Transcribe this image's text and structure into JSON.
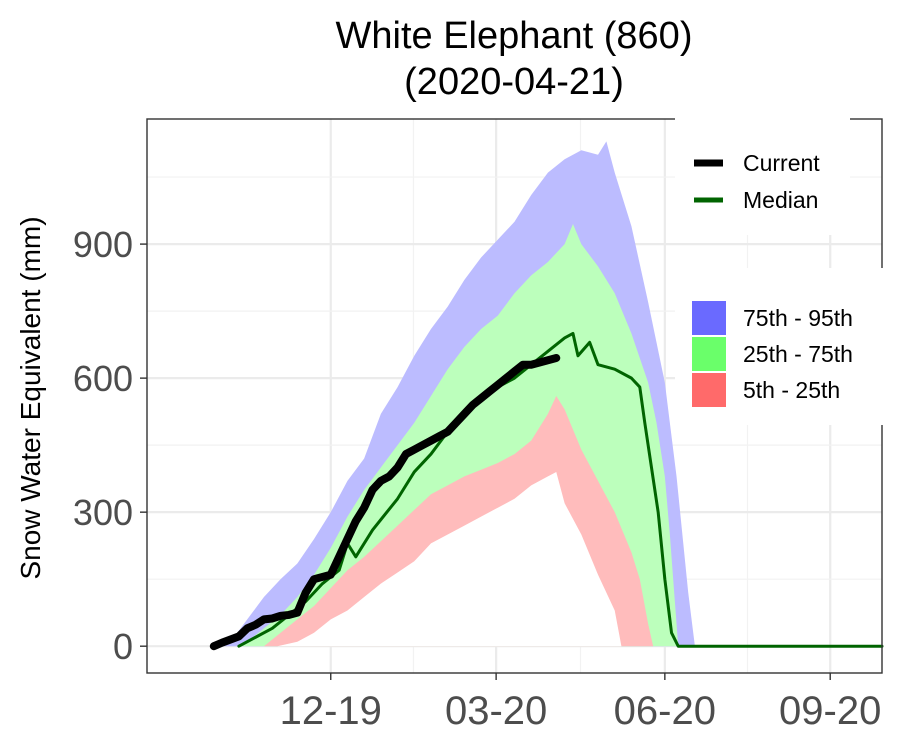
{
  "chart_data": {
    "type": "area",
    "title": "White Elephant (860)",
    "subtitle": "(2020-04-21)",
    "ylabel": "Snow Water Equivalent (mm)",
    "xlabel": "",
    "ylim": [
      -60,
      1180
    ],
    "xlim": [
      -40,
      400
    ],
    "x_ticks": [
      {
        "x": 70,
        "label": "12-19"
      },
      {
        "x": 169,
        "label": "03-20"
      },
      {
        "x": 270,
        "label": "06-20"
      },
      {
        "x": 369,
        "label": "09-20"
      }
    ],
    "y_ticks": [
      {
        "y": 0,
        "label": "0"
      },
      {
        "y": 300,
        "label": "300"
      },
      {
        "y": 600,
        "label": "600"
      },
      {
        "y": 900,
        "label": "900"
      }
    ],
    "x_units": "days since 2019-10-01",
    "legend_lines": [
      {
        "name": "Current",
        "color": "#000000"
      },
      {
        "name": "Median",
        "color": "#006400"
      }
    ],
    "legend_fills": [
      {
        "name": "75th - 95th",
        "color": "#6a6aff"
      },
      {
        "name": "25th - 75th",
        "color": "#6aff6a"
      },
      {
        "name": "5th - 25th",
        "color": "#ff6a6a"
      }
    ],
    "band_colors": {
      "p95": "#bcbcff",
      "p75": "#bcffbc",
      "p25": "#ffbcbc"
    },
    "p95_band": [
      [
        0,
        0
      ],
      [
        10,
        10
      ],
      [
        20,
        60
      ],
      [
        30,
        110
      ],
      [
        40,
        150
      ],
      [
        50,
        185
      ],
      [
        60,
        240
      ],
      [
        70,
        300
      ],
      [
        80,
        370
      ],
      [
        90,
        420
      ],
      [
        100,
        520
      ],
      [
        110,
        580
      ],
      [
        120,
        650
      ],
      [
        130,
        710
      ],
      [
        140,
        760
      ],
      [
        150,
        820
      ],
      [
        160,
        870
      ],
      [
        170,
        910
      ],
      [
        180,
        950
      ],
      [
        190,
        1010
      ],
      [
        200,
        1060
      ],
      [
        210,
        1090
      ],
      [
        220,
        1110
      ],
      [
        230,
        1100
      ],
      [
        235,
        1130
      ],
      [
        240,
        1060
      ],
      [
        250,
        940
      ],
      [
        260,
        770
      ],
      [
        270,
        590
      ],
      [
        277,
        380
      ],
      [
        284,
        120
      ],
      [
        288,
        0
      ],
      [
        400,
        0
      ]
    ],
    "p75_band": [
      [
        15,
        0
      ],
      [
        20,
        10
      ],
      [
        30,
        40
      ],
      [
        40,
        70
      ],
      [
        50,
        110
      ],
      [
        60,
        160
      ],
      [
        70,
        220
      ],
      [
        80,
        290
      ],
      [
        90,
        350
      ],
      [
        100,
        400
      ],
      [
        110,
        450
      ],
      [
        120,
        500
      ],
      [
        130,
        560
      ],
      [
        140,
        620
      ],
      [
        150,
        670
      ],
      [
        160,
        710
      ],
      [
        170,
        740
      ],
      [
        180,
        790
      ],
      [
        190,
        830
      ],
      [
        200,
        860
      ],
      [
        210,
        900
      ],
      [
        215,
        945
      ],
      [
        220,
        900
      ],
      [
        230,
        850
      ],
      [
        240,
        790
      ],
      [
        250,
        700
      ],
      [
        260,
        590
      ],
      [
        265,
        500
      ],
      [
        270,
        380
      ],
      [
        273,
        250
      ],
      [
        276,
        100
      ],
      [
        278,
        0
      ]
    ],
    "p25_band": [
      [
        30,
        0
      ],
      [
        40,
        30
      ],
      [
        50,
        60
      ],
      [
        60,
        90
      ],
      [
        70,
        130
      ],
      [
        80,
        170
      ],
      [
        90,
        200
      ],
      [
        100,
        235
      ],
      [
        110,
        270
      ],
      [
        120,
        305
      ],
      [
        130,
        340
      ],
      [
        140,
        360
      ],
      [
        150,
        380
      ],
      [
        160,
        395
      ],
      [
        170,
        410
      ],
      [
        180,
        430
      ],
      [
        190,
        460
      ],
      [
        200,
        520
      ],
      [
        205,
        560
      ],
      [
        210,
        530
      ],
      [
        220,
        440
      ],
      [
        230,
        370
      ],
      [
        240,
        300
      ],
      [
        250,
        210
      ],
      [
        255,
        150
      ],
      [
        260,
        50
      ],
      [
        263,
        0
      ]
    ],
    "p05_band": [
      [
        38,
        0
      ],
      [
        50,
        10
      ],
      [
        60,
        30
      ],
      [
        70,
        60
      ],
      [
        80,
        80
      ],
      [
        90,
        110
      ],
      [
        100,
        140
      ],
      [
        110,
        165
      ],
      [
        120,
        190
      ],
      [
        130,
        230
      ],
      [
        140,
        250
      ],
      [
        150,
        270
      ],
      [
        160,
        290
      ],
      [
        170,
        310
      ],
      [
        180,
        330
      ],
      [
        190,
        360
      ],
      [
        200,
        380
      ],
      [
        205,
        390
      ],
      [
        210,
        320
      ],
      [
        220,
        250
      ],
      [
        230,
        160
      ],
      [
        240,
        80
      ],
      [
        244,
        0
      ]
    ],
    "series": [
      {
        "name": "Median",
        "color": "#006400",
        "width": 3,
        "points": [
          [
            15,
            0
          ],
          [
            25,
            20
          ],
          [
            35,
            40
          ],
          [
            45,
            70
          ],
          [
            55,
            100
          ],
          [
            65,
            140
          ],
          [
            75,
            170
          ],
          [
            80,
            230
          ],
          [
            85,
            200
          ],
          [
            95,
            260
          ],
          [
            110,
            330
          ],
          [
            120,
            390
          ],
          [
            130,
            430
          ],
          [
            140,
            480
          ],
          [
            150,
            520
          ],
          [
            160,
            550
          ],
          [
            170,
            580
          ],
          [
            180,
            600
          ],
          [
            190,
            630
          ],
          [
            200,
            660
          ],
          [
            210,
            690
          ],
          [
            215,
            700
          ],
          [
            218,
            650
          ],
          [
            225,
            680
          ],
          [
            230,
            630
          ],
          [
            240,
            620
          ],
          [
            250,
            600
          ],
          [
            255,
            580
          ],
          [
            258,
            500
          ],
          [
            262,
            400
          ],
          [
            266,
            300
          ],
          [
            270,
            150
          ],
          [
            274,
            30
          ],
          [
            278,
            0
          ],
          [
            400,
            0
          ]
        ]
      },
      {
        "name": "Current",
        "color": "#000000",
        "width": 8,
        "points": [
          [
            0,
            0
          ],
          [
            5,
            8
          ],
          [
            10,
            15
          ],
          [
            15,
            22
          ],
          [
            20,
            40
          ],
          [
            25,
            48
          ],
          [
            30,
            60
          ],
          [
            35,
            62
          ],
          [
            40,
            68
          ],
          [
            45,
            70
          ],
          [
            50,
            75
          ],
          [
            55,
            120
          ],
          [
            60,
            150
          ],
          [
            65,
            155
          ],
          [
            70,
            160
          ],
          [
            75,
            200
          ],
          [
            80,
            240
          ],
          [
            85,
            280
          ],
          [
            90,
            310
          ],
          [
            95,
            350
          ],
          [
            100,
            370
          ],
          [
            105,
            380
          ],
          [
            110,
            400
          ],
          [
            115,
            430
          ],
          [
            120,
            440
          ],
          [
            125,
            450
          ],
          [
            130,
            460
          ],
          [
            135,
            470
          ],
          [
            140,
            480
          ],
          [
            145,
            500
          ],
          [
            150,
            520
          ],
          [
            155,
            540
          ],
          [
            160,
            555
          ],
          [
            165,
            570
          ],
          [
            170,
            585
          ],
          [
            175,
            600
          ],
          [
            180,
            615
          ],
          [
            185,
            630
          ],
          [
            190,
            630
          ],
          [
            195,
            635
          ],
          [
            200,
            640
          ],
          [
            205,
            645
          ]
        ]
      }
    ]
  }
}
